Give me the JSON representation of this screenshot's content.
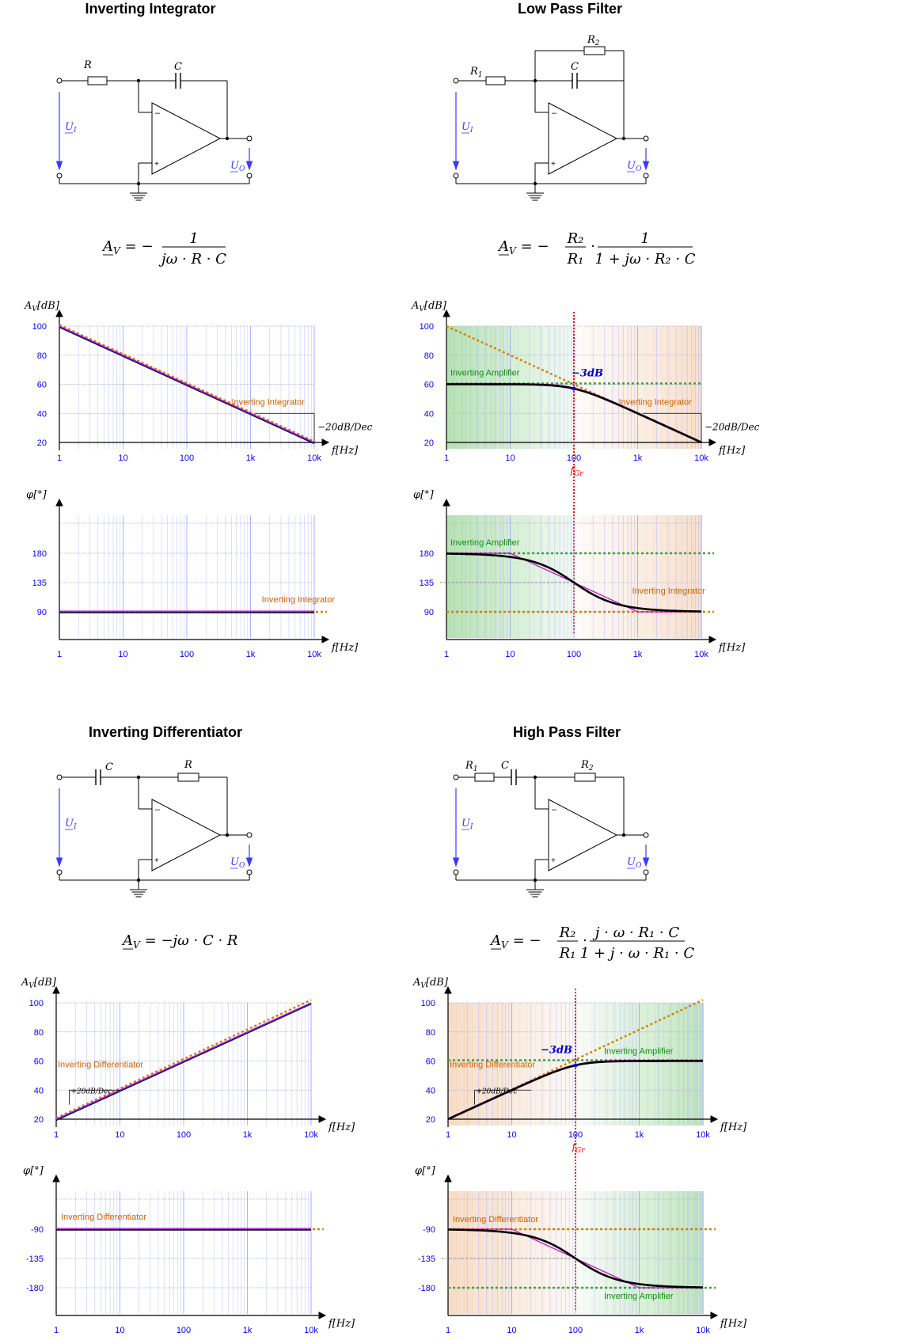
{
  "colors": {
    "axis": "#000000",
    "grid_minor": "#9aa0ff",
    "grid_major": "#b8b8d8",
    "tick_label": "#0000ff",
    "main_curve": "#000000",
    "approx_curve": "#d000d0",
    "integrator_line": "#d08000",
    "amplifier_line": "#40a040",
    "amplifier_label": "#109010",
    "integrator_label": "#d06000",
    "cutoff": "#ff0000",
    "db3": "#0000c0",
    "voltage_arrow": "#3a3aff",
    "zone_green": "#8fd08f",
    "zone_orange": "#f1c9a8"
  },
  "panels": [
    {
      "id": "integrator",
      "title": "Inverting Integrator",
      "circuit": {
        "type": "integrator",
        "labels": {
          "r_in": "R",
          "feedback": "C",
          "ui": "U",
          "ui_sub": "I",
          "uo": "U",
          "uo_sub": "O",
          "minus": "–",
          "plus": "+"
        }
      },
      "formula": {
        "type": "integrator",
        "lhs": "A",
        "lhs_sub": "V",
        "eq": "= −",
        "num": "1",
        "den": "jω · R · C"
      },
      "magnitude": {
        "ylabel": "A",
        "ylabel_sub": "V",
        "ylabel_unit": "[dB]",
        "xlabel": "f[Hz]",
        "yticks": [
          "100",
          "80",
          "60",
          "40",
          "20"
        ],
        "xticks": [
          "1",
          "10",
          "100",
          "1k",
          "10k"
        ],
        "slope_label": "−20dB/Dec",
        "asymptote_label": "Inverting Integrator",
        "series": [
          {
            "role": "main",
            "x": [
              1,
              10000
            ],
            "y": [
              100,
              20
            ]
          },
          {
            "role": "integrator",
            "x": [
              1,
              10000
            ],
            "y": [
              100.8,
              20.8
            ]
          }
        ]
      },
      "phase": {
        "ylabel": "φ[°]",
        "xlabel": "f[Hz]",
        "yticks": [
          "180",
          "135",
          "90"
        ],
        "xticks": [
          "1",
          "10",
          "100",
          "1k",
          "10k"
        ],
        "asymptote_label": "Inverting Integrator",
        "series": [
          {
            "role": "main",
            "x": [
              1,
              10000
            ],
            "y": [
              90,
              90
            ]
          }
        ]
      }
    },
    {
      "id": "lowpass",
      "title": "Low Pass Filter",
      "circuit": {
        "type": "lowpass",
        "labels": {
          "r_in": "R",
          "r_in_sub": "1",
          "r_fb": "R",
          "r_fb_sub": "2",
          "feedback": "C",
          "ui": "U",
          "ui_sub": "I",
          "uo": "U",
          "uo_sub": "O",
          "minus": "–",
          "plus": "+"
        }
      },
      "formula": {
        "type": "lowpass",
        "lhs": "A",
        "lhs_sub": "V",
        "eq": "= −",
        "num1": "R₂",
        "den1": "R₁",
        "dot": "·",
        "num2": "1",
        "den2": "1 + jω · R₂ · C"
      },
      "magnitude": {
        "ylabel": "A",
        "ylabel_sub": "V",
        "ylabel_unit": "[dB]",
        "xlabel": "f[Hz]",
        "yticks": [
          "100",
          "80",
          "60",
          "40",
          "20"
        ],
        "xticks": [
          "1",
          "10",
          "100",
          "1k",
          "10k"
        ],
        "slope_label": "−20dB/Dec",
        "db3_label": "−3dB",
        "amplifier_label": "Inverting Amplifier",
        "asymptote_label": "Inverting Integrator",
        "cutoff_label": "f",
        "cutoff_sub": "Gr",
        "cutoff_hz": 100,
        "gain_db": 60
      },
      "phase": {
        "ylabel": "φ[°]",
        "xlabel": "f[Hz]",
        "yticks": [
          "180",
          "135",
          "90"
        ],
        "xticks": [
          "1",
          "10",
          "100",
          "1k",
          "10k"
        ],
        "amplifier_label": "Inverting Amplifier",
        "asymptote_label": "Inverting Integrator"
      }
    },
    {
      "id": "differentiator",
      "title": "Inverting Differentiator",
      "circuit": {
        "type": "differentiator",
        "labels": {
          "r_in": "C",
          "feedback": "R",
          "ui": "U",
          "ui_sub": "I",
          "uo": "U",
          "uo_sub": "O",
          "minus": "–",
          "plus": "+"
        }
      },
      "formula": {
        "type": "differentiator",
        "lhs": "A",
        "lhs_sub": "V",
        "rhs": "= −jω · C · R"
      },
      "magnitude": {
        "ylabel": "A",
        "ylabel_sub": "V",
        "ylabel_unit": "[dB]",
        "xlabel": "f[Hz]",
        "yticks": [
          "100",
          "80",
          "60",
          "40",
          "20"
        ],
        "xticks": [
          "1",
          "10",
          "100",
          "1k",
          "10k"
        ],
        "slope_label": "+20dB/Dec",
        "asymptote_label": "Inverting Differentiator",
        "series": [
          {
            "role": "main",
            "x": [
              1,
              10000
            ],
            "y": [
              20,
              100
            ]
          },
          {
            "role": "integrator",
            "x": [
              1,
              10000
            ],
            "y": [
              20.8,
              102
            ]
          }
        ]
      },
      "phase": {
        "ylabel": "φ[°]",
        "xlabel": "f[Hz]",
        "yticks": [
          "-90",
          "-135",
          "-180"
        ],
        "xticks": [
          "1",
          "10",
          "100",
          "1k",
          "10k"
        ],
        "asymptote_label": "Inverting Differentiator"
      }
    },
    {
      "id": "highpass",
      "title": "High Pass Filter",
      "circuit": {
        "type": "highpass",
        "labels": {
          "r_in": "R",
          "r_in_sub": "1",
          "cap": "C",
          "feedback": "R",
          "feedback_sub": "2",
          "ui": "U",
          "ui_sub": "I",
          "uo": "U",
          "uo_sub": "O",
          "minus": "–",
          "plus": "+"
        }
      },
      "formula": {
        "type": "highpass",
        "lhs": "A",
        "lhs_sub": "V",
        "eq": "= −",
        "num1": "R₂",
        "den1": "R₁",
        "dot": "·",
        "num2": "j · ω · R₁ · C",
        "den2": "1 + j · ω · R₁ · C"
      },
      "magnitude": {
        "ylabel": "A",
        "ylabel_sub": "V",
        "ylabel_unit": "[dB]",
        "xlabel": "f[Hz]",
        "yticks": [
          "100",
          "80",
          "60",
          "40",
          "20"
        ],
        "xticks": [
          "1",
          "10",
          "100",
          "1k",
          "10k"
        ],
        "slope_label": "+20dB/Dec",
        "db3_label": "−3dB",
        "amplifier_label": "Inverting Amplifier",
        "asymptote_label": "Inverting Differentiator",
        "cutoff_label": "f",
        "cutoff_sub": "Gr",
        "cutoff_hz": 100,
        "gain_db": 60
      },
      "phase": {
        "ylabel": "φ[°]",
        "xlabel": "f[Hz]",
        "yticks": [
          "-90",
          "-135",
          "-180"
        ],
        "xticks": [
          "1",
          "10",
          "100",
          "1k",
          "10k"
        ],
        "amplifier_label": "Inverting Amplifier",
        "asymptote_label": "Inverting Differentiator"
      }
    }
  ]
}
